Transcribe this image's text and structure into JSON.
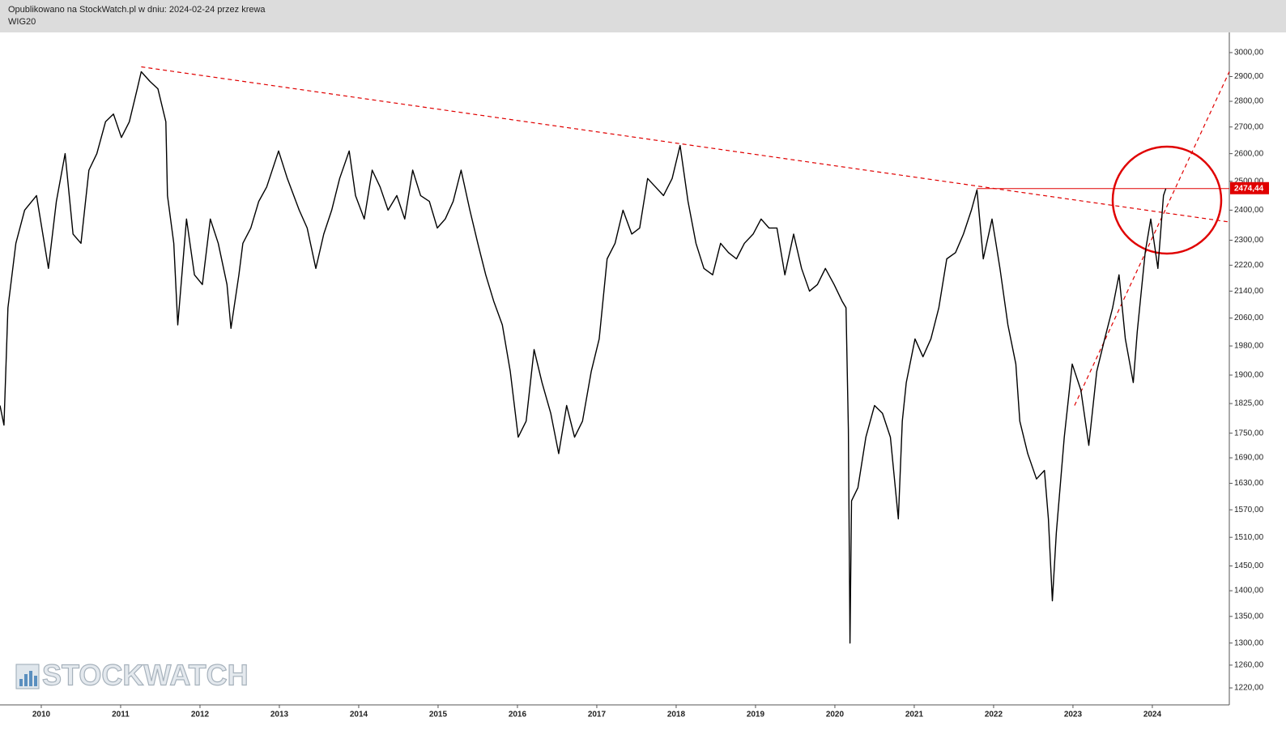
{
  "header": {
    "published": "Opublikowano na StockWatch.pl w dniu: 2024-02-24 przez krewa",
    "title": "WIG20"
  },
  "chart_data": {
    "type": "line",
    "watermark": "STOCKWATCH",
    "log_scale_y": true,
    "color": "#000000",
    "xlim": [
      2009.48,
      2024.97
    ],
    "ylim": [
      1191,
      3087
    ],
    "xticks": [
      2010,
      2011,
      2012,
      2013,
      2014,
      2015,
      2016,
      2017,
      2018,
      2019,
      2020,
      2021,
      2022,
      2023,
      2024
    ],
    "yticks": [
      {
        "value": 3000,
        "label": "3000,00"
      },
      {
        "value": 2900,
        "label": "2900,00"
      },
      {
        "value": 2800,
        "label": "2800,00"
      },
      {
        "value": 2700,
        "label": "2700,00"
      },
      {
        "value": 2600,
        "label": "2600,00"
      },
      {
        "value": 2500,
        "label": "2500,00"
      },
      {
        "value": 2400,
        "label": "2400,00"
      },
      {
        "value": 2300,
        "label": "2300,00"
      },
      {
        "value": 2220,
        "label": "2220,00"
      },
      {
        "value": 2140,
        "label": "2140,00"
      },
      {
        "value": 2060,
        "label": "2060,00"
      },
      {
        "value": 1980,
        "label": "1980,00"
      },
      {
        "value": 1900,
        "label": "1900,00"
      },
      {
        "value": 1825,
        "label": "1825,00"
      },
      {
        "value": 1750,
        "label": "1750,00"
      },
      {
        "value": 1690,
        "label": "1690,00"
      },
      {
        "value": 1630,
        "label": "1630,00"
      },
      {
        "value": 1570,
        "label": "1570,00"
      },
      {
        "value": 1510,
        "label": "1510,00"
      },
      {
        "value": 1450,
        "label": "1450,00"
      },
      {
        "value": 1400,
        "label": "1400,00"
      },
      {
        "value": 1350,
        "label": "1350,00"
      },
      {
        "value": 1300,
        "label": "1300,00"
      },
      {
        "value": 1260,
        "label": "1260,00"
      },
      {
        "value": 1220,
        "label": "1220,00"
      }
    ],
    "x": [
      2009.48,
      2009.53,
      2009.58,
      2009.68,
      2009.79,
      2009.94,
      2010.09,
      2010.19,
      2010.3,
      2010.4,
      2010.5,
      2010.6,
      2010.7,
      2010.81,
      2010.91,
      2011.01,
      2011.11,
      2011.21,
      2011.26,
      2011.37,
      2011.47,
      2011.57,
      2011.59,
      2011.67,
      2011.72,
      2011.83,
      2011.93,
      2012.03,
      2012.13,
      2012.23,
      2012.34,
      2012.39,
      2012.49,
      2012.54,
      2012.64,
      2012.74,
      2012.84,
      2012.99,
      2013.1,
      2013.25,
      2013.35,
      2013.46,
      2013.56,
      2013.66,
      2013.76,
      2013.88,
      2013.96,
      2014.07,
      2014.17,
      2014.27,
      2014.37,
      2014.48,
      2014.58,
      2014.68,
      2014.78,
      2014.89,
      2014.99,
      2015.09,
      2015.19,
      2015.29,
      2015.4,
      2015.5,
      2015.6,
      2015.7,
      2015.81,
      2015.91,
      2016.01,
      2016.11,
      2016.21,
      2016.31,
      2016.42,
      2016.52,
      2016.62,
      2016.72,
      2016.82,
      2016.93,
      2017.03,
      2017.13,
      2017.23,
      2017.33,
      2017.44,
      2017.54,
      2017.64,
      2017.74,
      2017.84,
      2017.95,
      2018.05,
      2018.15,
      2018.25,
      2018.35,
      2018.46,
      2018.56,
      2018.66,
      2018.76,
      2018.86,
      2018.97,
      2019.07,
      2019.17,
      2019.27,
      2019.37,
      2019.48,
      2019.58,
      2019.68,
      2019.78,
      2019.88,
      2019.99,
      2020.09,
      2020.14,
      2020.17,
      2020.19,
      2020.21,
      2020.29,
      2020.39,
      2020.5,
      2020.6,
      2020.7,
      2020.8,
      2020.85,
      2020.9,
      2021.01,
      2021.11,
      2021.21,
      2021.31,
      2021.41,
      2021.52,
      2021.62,
      2021.72,
      2021.79,
      2021.87,
      2021.98,
      2022.08,
      2022.18,
      2022.28,
      2022.33,
      2022.43,
      2022.54,
      2022.64,
      2022.69,
      2022.74,
      2022.79,
      2022.89,
      2022.99,
      2023.1,
      2023.2,
      2023.3,
      2023.4,
      2023.5,
      2023.58,
      2023.66,
      2023.76,
      2023.81,
      2023.91,
      2023.98,
      2024.07,
      2024.14,
      2024.17
    ],
    "values": [
      1820,
      1770,
      2090,
      2290,
      2400,
      2450,
      2210,
      2430,
      2600,
      2320,
      2290,
      2540,
      2600,
      2720,
      2750,
      2660,
      2720,
      2850,
      2920,
      2880,
      2850,
      2720,
      2450,
      2290,
      2040,
      2370,
      2190,
      2160,
      2370,
      2290,
      2160,
      2030,
      2190,
      2290,
      2340,
      2430,
      2480,
      2610,
      2510,
      2400,
      2340,
      2210,
      2320,
      2400,
      2510,
      2610,
      2450,
      2370,
      2540,
      2480,
      2400,
      2450,
      2370,
      2540,
      2450,
      2430,
      2340,
      2370,
      2430,
      2540,
      2400,
      2290,
      2190,
      2110,
      2040,
      1910,
      1740,
      1780,
      1970,
      1880,
      1800,
      1700,
      1820,
      1740,
      1780,
      1910,
      2000,
      2240,
      2290,
      2400,
      2320,
      2340,
      2510,
      2480,
      2450,
      2510,
      2630,
      2430,
      2290,
      2210,
      2190,
      2290,
      2260,
      2240,
      2290,
      2320,
      2370,
      2340,
      2340,
      2190,
      2320,
      2210,
      2140,
      2160,
      2210,
      2160,
      2110,
      2090,
      1760,
      1300,
      1590,
      1620,
      1740,
      1820,
      1800,
      1740,
      1550,
      1780,
      1880,
      2000,
      1950,
      2000,
      2090,
      2240,
      2260,
      2320,
      2400,
      2470,
      2240,
      2370,
      2210,
      2040,
      1930,
      1780,
      1700,
      1640,
      1660,
      1550,
      1380,
      1520,
      1740,
      1930,
      1860,
      1720,
      1910,
      2000,
      2090,
      2190,
      2000,
      1880,
      2020,
      2260,
      2370,
      2210,
      2450,
      2474.44
    ],
    "last_price": {
      "value": 2474.44,
      "label": "2474,44",
      "from_x": 2021.79,
      "color": "#e00000"
    },
    "trendlines": [
      {
        "x": [
          2011.26,
          2024.97
        ],
        "values": [
          2940,
          2360
        ],
        "color": "#e00000"
      },
      {
        "x": [
          2023.02,
          2024.97
        ],
        "values": [
          1820,
          2920
        ],
        "color": "#e00000"
      }
    ]
  }
}
